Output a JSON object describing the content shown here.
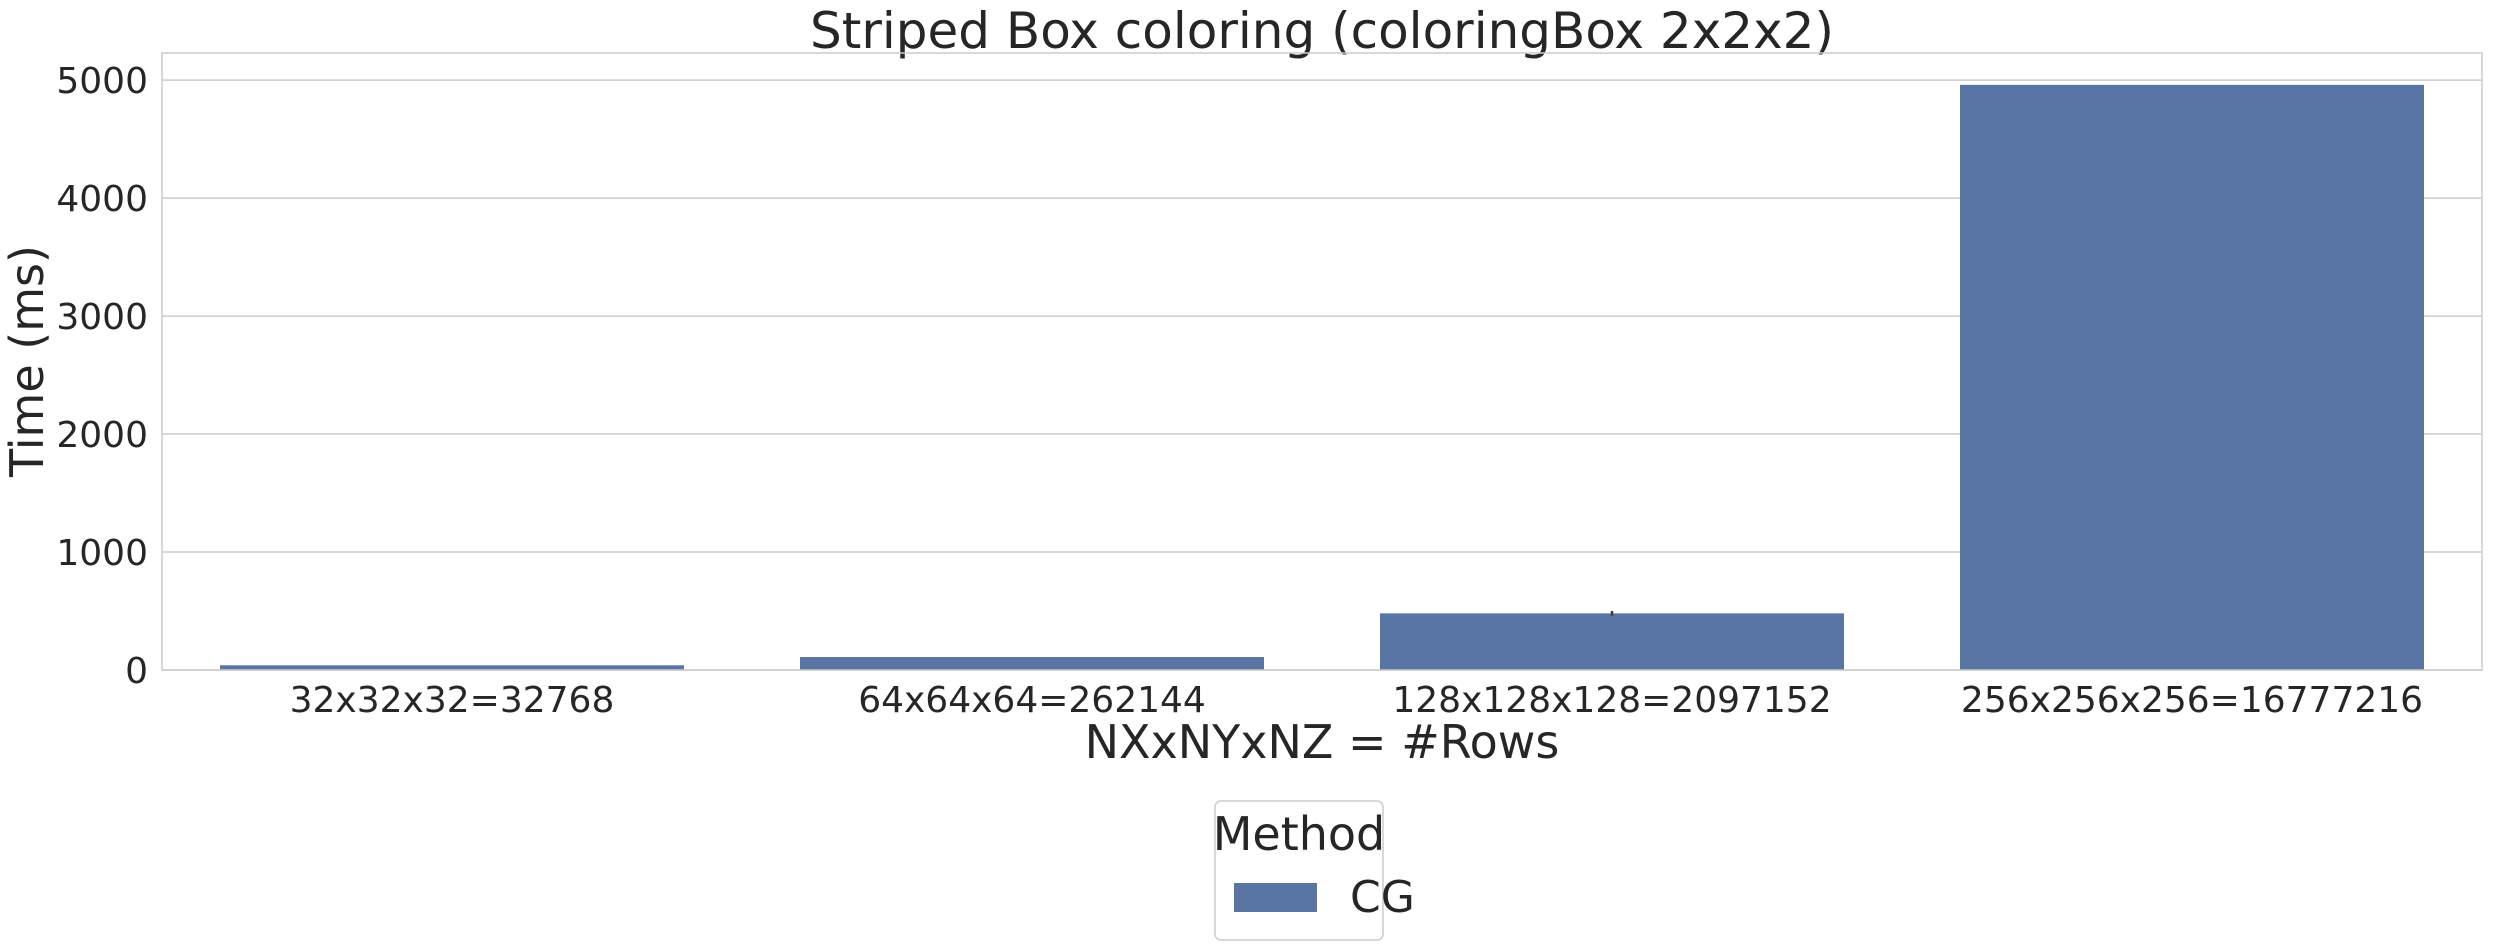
{
  "chart_data": {
    "type": "bar",
    "title": "Striped Box coloring (coloringBox 2x2x2)",
    "xlabel": "NXxNYxNZ = #Rows",
    "ylabel": "Time (ms)",
    "categories": [
      "32x32x32=32768",
      "64x64x64=262144",
      "128x128x128=2097152",
      "256x256x256=16777216"
    ],
    "series": [
      {
        "name": "CG",
        "color": "#5975a4",
        "values": [
          40,
          110,
          480,
          4960
        ],
        "errors": [
          0,
          0,
          20,
          0
        ]
      }
    ],
    "ylim": [
      0,
      5230
    ],
    "yticks": [
      0,
      1000,
      2000,
      3000,
      4000,
      5000
    ],
    "grid": true,
    "legend": {
      "title": "Method",
      "placement": "bottom-center"
    }
  }
}
